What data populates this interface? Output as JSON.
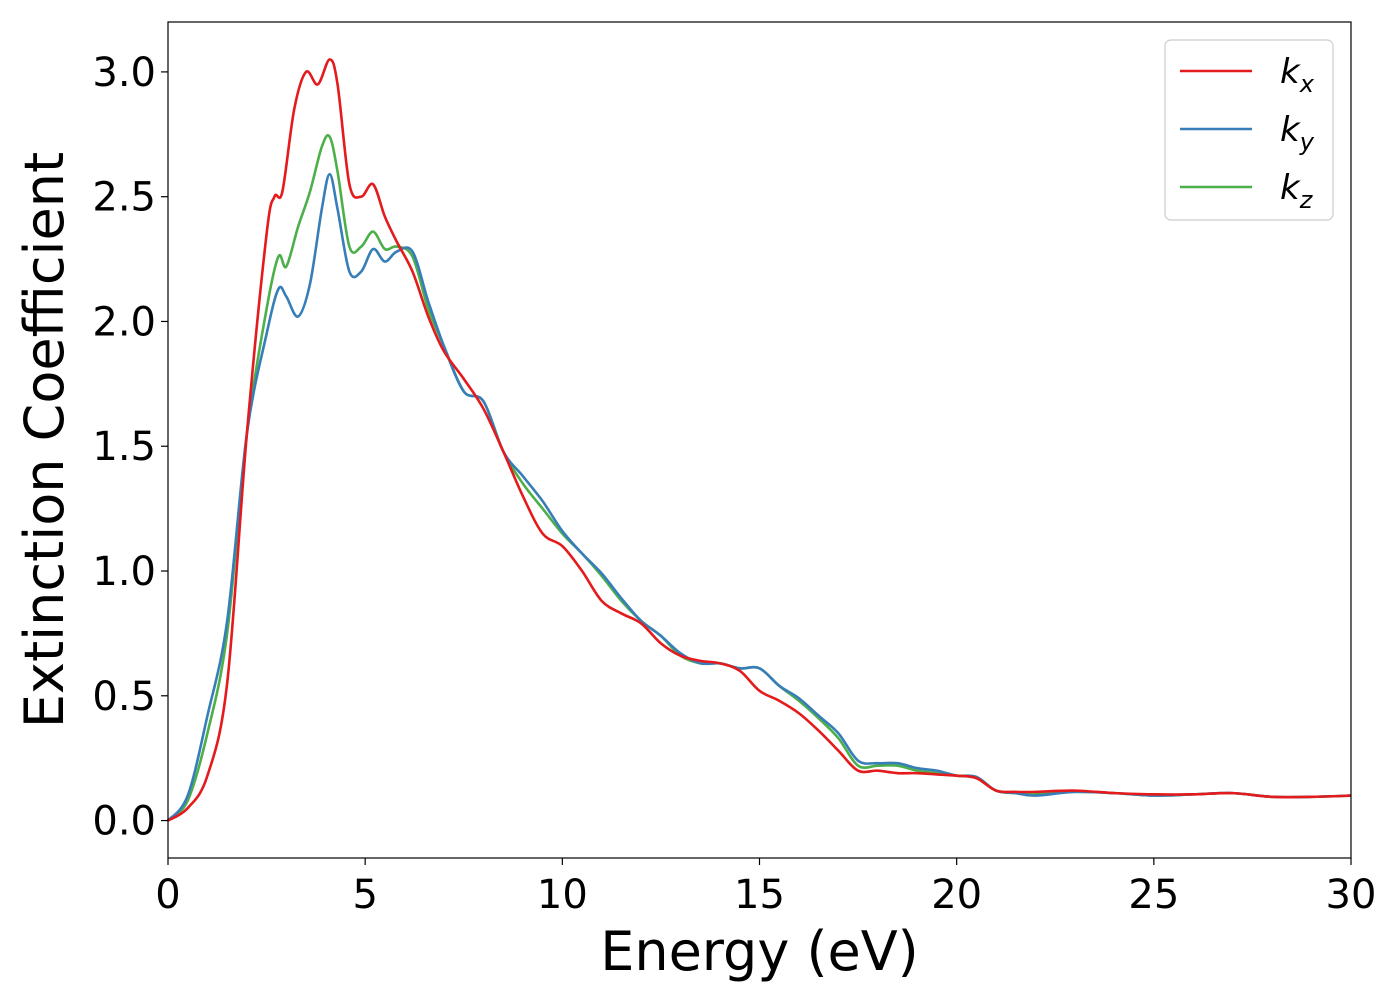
{
  "chart_data": {
    "type": "line",
    "xlabel": "Energy (eV)",
    "ylabel": "Extinction Coefficient",
    "xlim": [
      0,
      30
    ],
    "ylim": [
      -0.15,
      3.2
    ],
    "xticks": [
      "0",
      "5",
      "10",
      "15",
      "20",
      "25",
      "30"
    ],
    "yticks": [
      "0.0",
      "0.5",
      "1.0",
      "1.5",
      "2.0",
      "2.5",
      "3.0"
    ],
    "grid": false,
    "legend_position": "top-right",
    "series": [
      {
        "name": "k_x",
        "label_main": "k",
        "label_sub": "x",
        "color": "#e41a1c",
        "x": [
          0,
          0.5,
          1.0,
          1.5,
          2.0,
          2.5,
          2.7,
          2.9,
          3.2,
          3.5,
          3.8,
          4.1,
          4.3,
          4.6,
          4.9,
          5.2,
          5.5,
          5.8,
          6.2,
          6.6,
          7.0,
          7.5,
          8.0,
          8.5,
          9.0,
          9.5,
          10.0,
          10.5,
          11.0,
          11.5,
          12.0,
          12.5,
          13.0,
          13.5,
          14.0,
          14.5,
          15.0,
          15.5,
          16.0,
          16.5,
          17.0,
          17.5,
          18.0,
          18.5,
          19.0,
          19.5,
          20.0,
          20.5,
          21.0,
          21.5,
          22.0,
          23.0,
          24.0,
          25.0,
          26.0,
          27.0,
          28.0,
          29.0,
          30.0
        ],
        "values": [
          0.0,
          0.05,
          0.18,
          0.55,
          1.55,
          2.35,
          2.5,
          2.52,
          2.85,
          3.0,
          2.95,
          3.05,
          2.95,
          2.55,
          2.5,
          2.55,
          2.42,
          2.32,
          2.2,
          2.02,
          1.88,
          1.77,
          1.65,
          1.48,
          1.3,
          1.15,
          1.1,
          1.0,
          0.88,
          0.83,
          0.79,
          0.71,
          0.66,
          0.64,
          0.63,
          0.6,
          0.52,
          0.48,
          0.43,
          0.36,
          0.28,
          0.2,
          0.2,
          0.19,
          0.19,
          0.185,
          0.18,
          0.17,
          0.12,
          0.115,
          0.115,
          0.12,
          0.11,
          0.105,
          0.105,
          0.11,
          0.095,
          0.095,
          0.1
        ]
      },
      {
        "name": "k_y",
        "label_main": "k",
        "label_sub": "y",
        "color": "#377eb8",
        "x": [
          0,
          0.5,
          1.0,
          1.5,
          2.0,
          2.5,
          2.8,
          3.0,
          3.3,
          3.6,
          3.9,
          4.1,
          4.3,
          4.6,
          4.9,
          5.2,
          5.5,
          5.8,
          6.2,
          6.6,
          7.0,
          7.5,
          8.0,
          8.5,
          9.0,
          9.5,
          10.0,
          10.5,
          11.0,
          11.5,
          12.0,
          12.5,
          13.0,
          13.5,
          14.0,
          14.5,
          15.0,
          15.5,
          16.0,
          16.5,
          17.0,
          17.5,
          18.0,
          18.5,
          19.0,
          19.5,
          20.0,
          20.5,
          21.0,
          21.5,
          22.0,
          23.0,
          24.0,
          25.0,
          26.0,
          27.0,
          28.0,
          29.0,
          30.0
        ],
        "values": [
          0.0,
          0.1,
          0.42,
          0.8,
          1.55,
          1.95,
          2.13,
          2.1,
          2.02,
          2.15,
          2.45,
          2.59,
          2.45,
          2.2,
          2.2,
          2.29,
          2.24,
          2.28,
          2.28,
          2.08,
          1.9,
          1.72,
          1.68,
          1.48,
          1.38,
          1.28,
          1.16,
          1.07,
          0.99,
          0.89,
          0.8,
          0.74,
          0.67,
          0.63,
          0.63,
          0.61,
          0.61,
          0.54,
          0.49,
          0.42,
          0.35,
          0.24,
          0.23,
          0.23,
          0.21,
          0.2,
          0.18,
          0.175,
          0.12,
          0.11,
          0.1,
          0.115,
          0.11,
          0.1,
          0.105,
          0.11,
          0.095,
          0.095,
          0.1
        ]
      },
      {
        "name": "k_z",
        "label_main": "k",
        "label_sub": "z",
        "color": "#4daf4a",
        "x": [
          0,
          0.5,
          1.0,
          1.5,
          2.0,
          2.5,
          2.8,
          3.0,
          3.3,
          3.6,
          3.9,
          4.1,
          4.3,
          4.6,
          4.9,
          5.2,
          5.5,
          5.8,
          6.2,
          6.6,
          7.0,
          7.5,
          8.0,
          8.5,
          9.0,
          9.5,
          10.0,
          10.5,
          11.0,
          11.5,
          12.0,
          12.5,
          13.0,
          13.5,
          14.0,
          14.5,
          15.0,
          15.5,
          16.0,
          16.5,
          17.0,
          17.5,
          18.0,
          18.5,
          19.0,
          19.5,
          20.0,
          20.5,
          21.0,
          21.5,
          22.0,
          23.0,
          24.0,
          25.0,
          26.0,
          27.0,
          28.0,
          29.0,
          30.0
        ],
        "values": [
          0.0,
          0.08,
          0.35,
          0.75,
          1.55,
          2.05,
          2.26,
          2.22,
          2.38,
          2.52,
          2.7,
          2.74,
          2.6,
          2.3,
          2.3,
          2.36,
          2.29,
          2.3,
          2.26,
          2.05,
          1.9,
          1.72,
          1.68,
          1.48,
          1.35,
          1.25,
          1.15,
          1.07,
          0.98,
          0.88,
          0.8,
          0.74,
          0.66,
          0.63,
          0.63,
          0.61,
          0.61,
          0.54,
          0.48,
          0.41,
          0.33,
          0.22,
          0.22,
          0.22,
          0.2,
          0.19,
          0.18,
          0.17,
          0.12,
          0.11,
          0.105,
          0.115,
          0.11,
          0.1,
          0.105,
          0.11,
          0.095,
          0.095,
          0.1
        ]
      }
    ]
  }
}
